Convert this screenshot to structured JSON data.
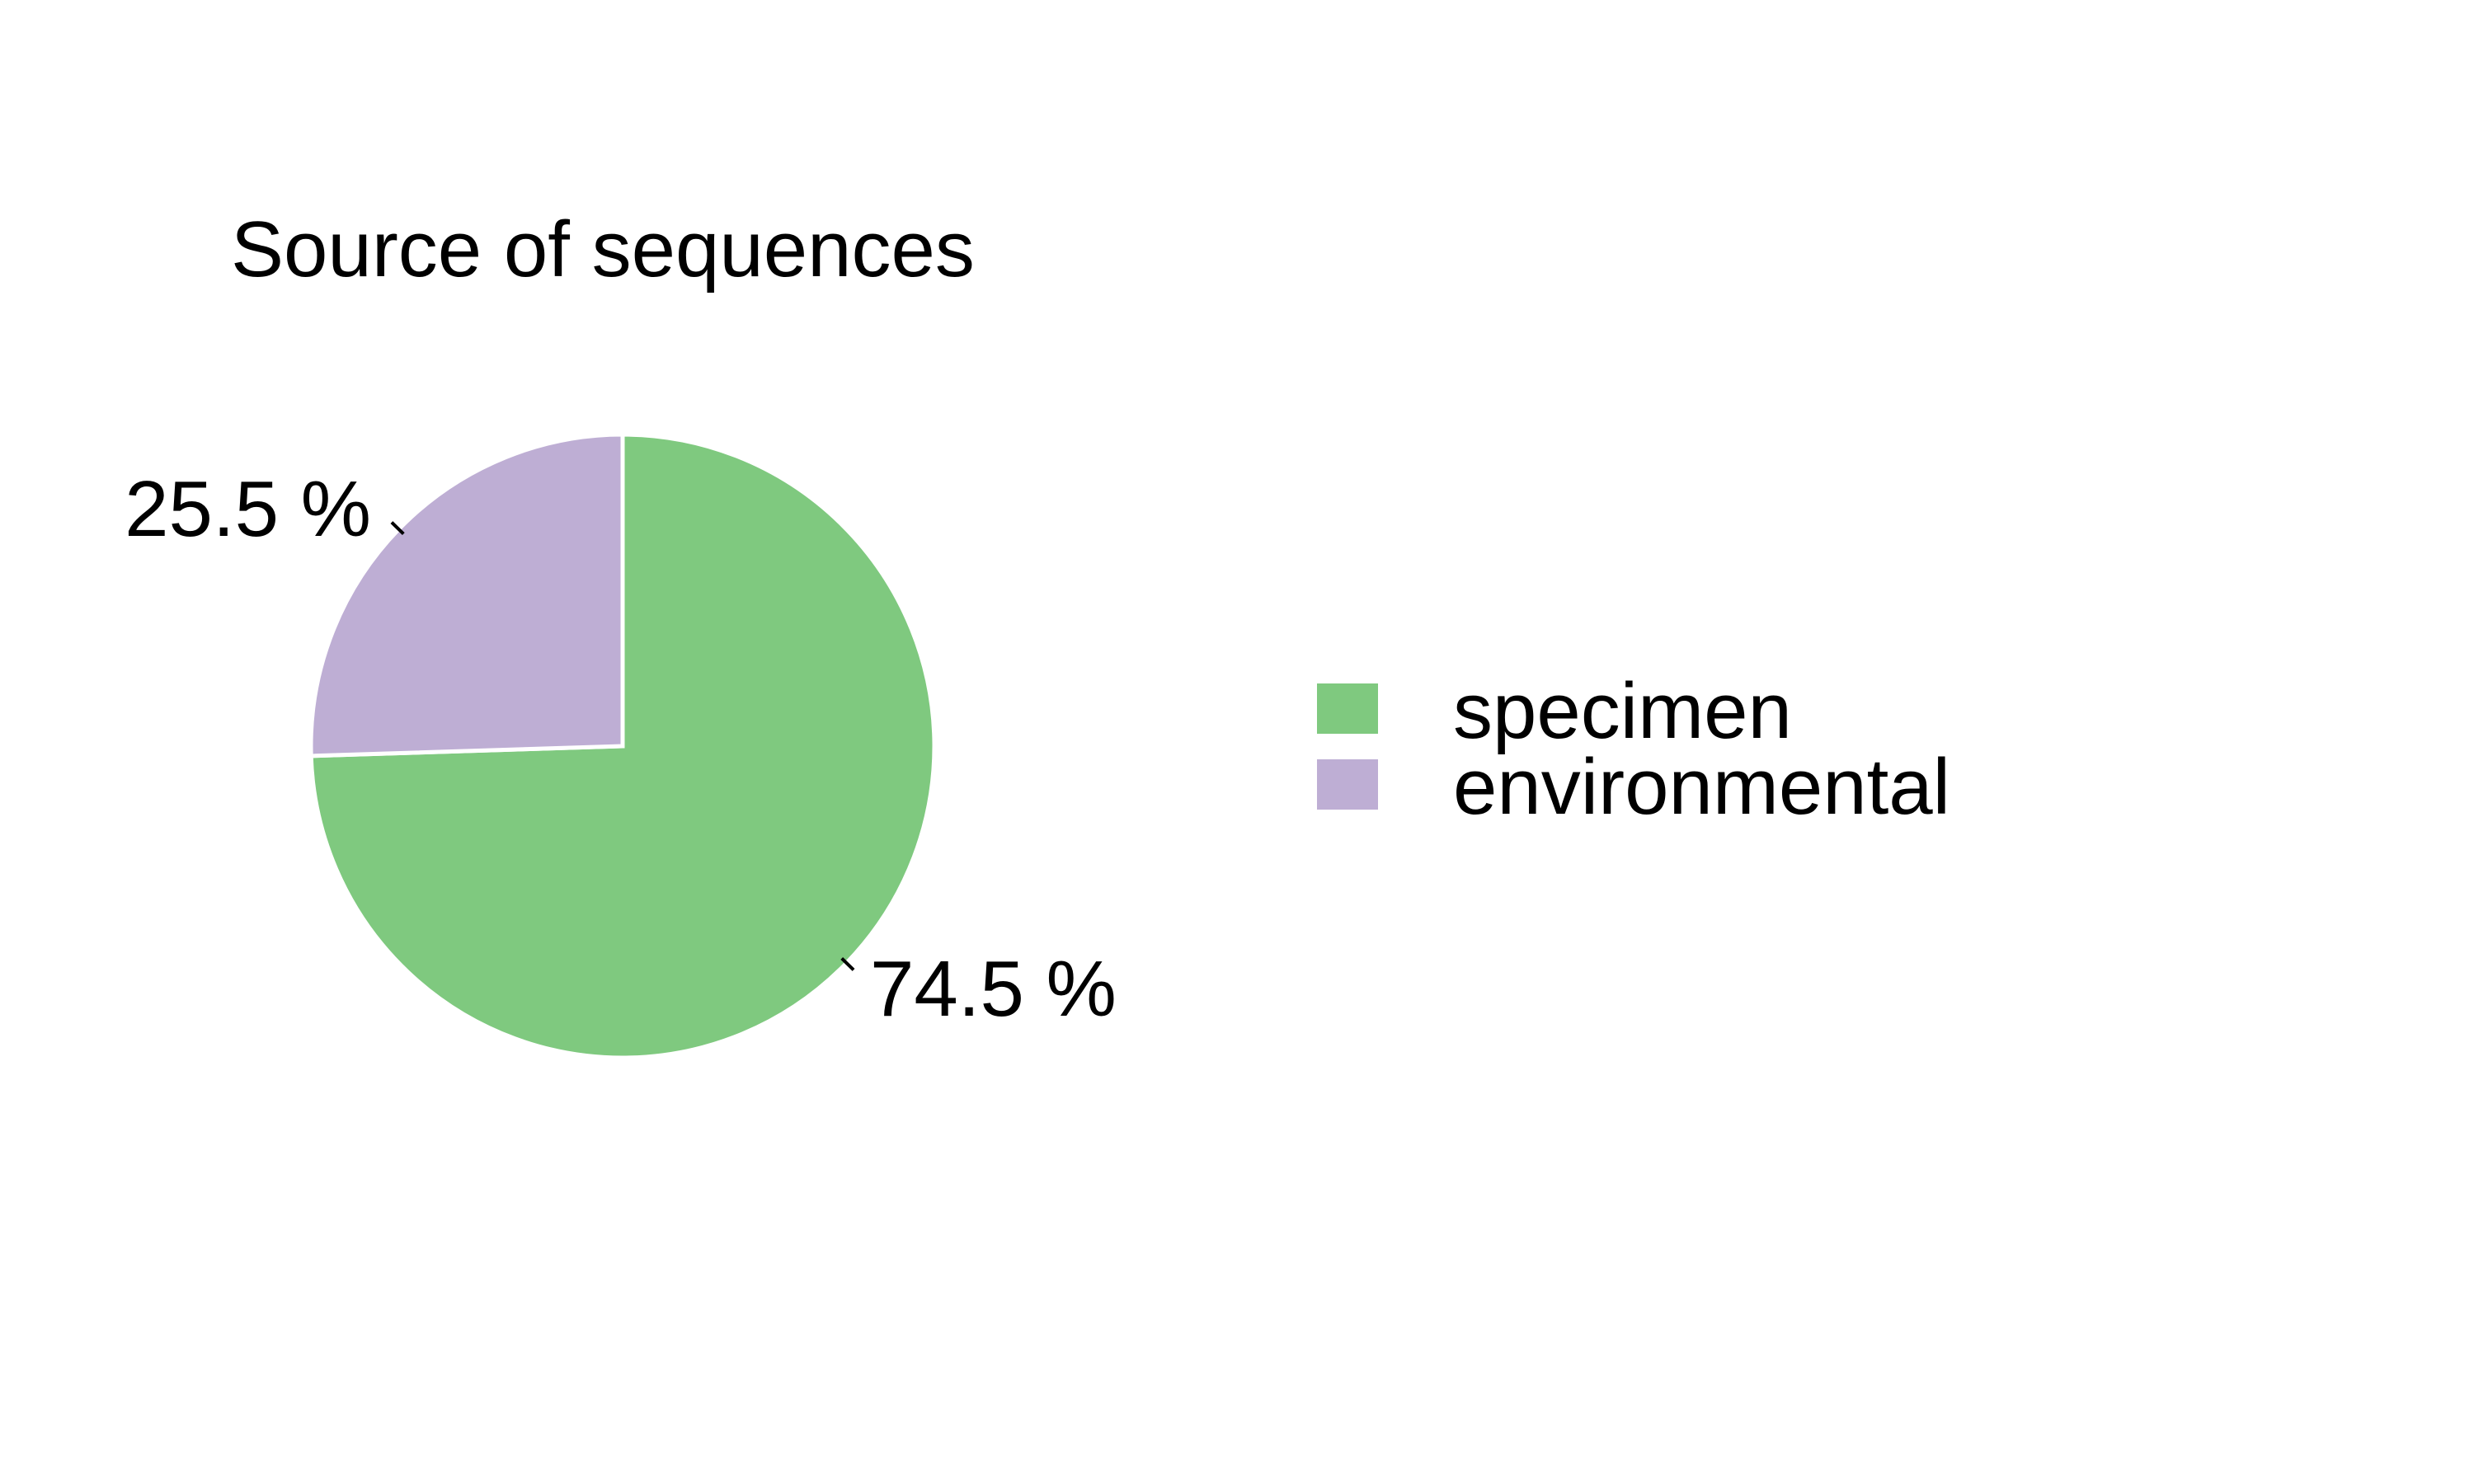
{
  "chart_data": {
    "type": "pie",
    "title": "Source of sequences",
    "slices": [
      {
        "label": "specimen",
        "value": 74.5,
        "value_label": "74.5 %",
        "color": "#7fc97f"
      },
      {
        "label": "environmental",
        "value": 25.5,
        "value_label": "25.5 %",
        "color": "#beaed4"
      }
    ],
    "slice_border_color": "#ffffff",
    "start": "12 o'clock",
    "direction": "clockwise",
    "legend": {
      "position": "right",
      "items": [
        "specimen",
        "environmental"
      ]
    }
  }
}
